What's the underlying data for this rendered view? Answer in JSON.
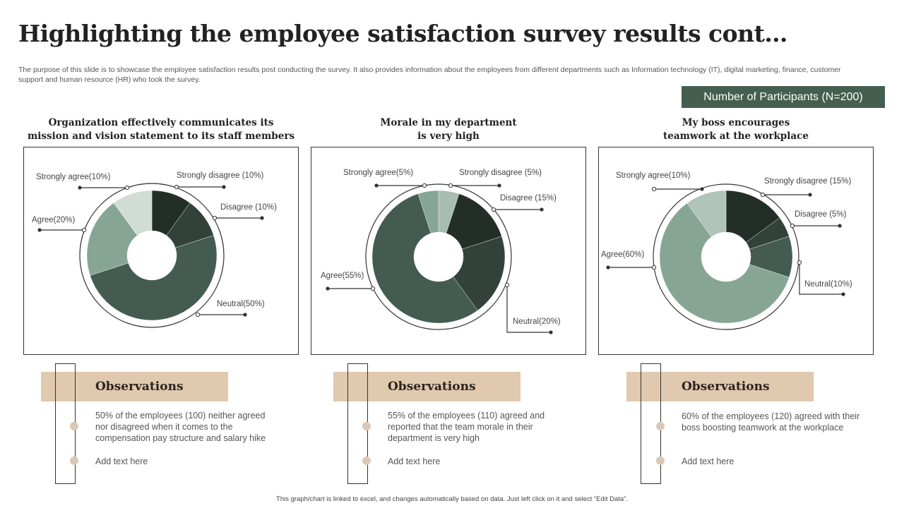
{
  "title": "Highlighting the employee satisfaction survey results cont…",
  "description": "The purpose of this slide is to showcase the employee satisfaction results post conducting the survey. It also provides information about the employees from different departments such as Information technology (IT), digital marketing, finance, customer support and human resource (HR) who took the survey.",
  "participants_label": "Number of Participants (N=200)",
  "chart_data": [
    {
      "type": "pie",
      "title": "Organization effectively communicates its mission and vision statement to its staff members",
      "categories": [
        "Strongly disagree",
        "Disagree",
        "Neutral",
        "Agree",
        "Strongly agree"
      ],
      "values": [
        10,
        10,
        50,
        20,
        10
      ],
      "labels": [
        "Strongly disagree (10%)",
        "Disagree (10%)",
        "Neutral(50%)",
        "Agree(20%)",
        "Strongly agree(10%)"
      ],
      "colors": [
        "#232e27",
        "#334239",
        "#435c4f",
        "#87a595",
        "#d2dcd6"
      ]
    },
    {
      "type": "pie",
      "title": "Morale in my department is very high",
      "categories": [
        "Strongly disagree",
        "Disagree",
        "Neutral",
        "Agree",
        "Strongly agree"
      ],
      "values": [
        5,
        15,
        20,
        55,
        5
      ],
      "labels": [
        "Strongly disagree (5%)",
        "Disagree (15%)",
        "Neutral(20%)",
        "Agree(55%)",
        "Strongly agree(5%)"
      ],
      "colors": [
        "#a8bdb1",
        "#232e27",
        "#334239",
        "#435c4f",
        "#87a595"
      ]
    },
    {
      "type": "pie",
      "title": "My boss encourages teamwork at the workplace",
      "categories": [
        "Strongly disagree",
        "Disagree",
        "Neutral",
        "Agree",
        "Strongly agree"
      ],
      "values": [
        15,
        5,
        10,
        60,
        10
      ],
      "labels": [
        "Strongly disagree (15%)",
        "Disagree (5%)",
        "Neutral(10%)",
        "Agree(60%)",
        "Strongly agree(10%)"
      ],
      "colors": [
        "#232e27",
        "#334239",
        "#435c4f",
        "#87a595",
        "#b0c4b9"
      ]
    }
  ],
  "chart_titles": [
    [
      "Organization effectively communicates its",
      "mission and vision statement to its staff members"
    ],
    [
      "Morale in my department",
      "is very high"
    ],
    [
      "My boss encourages",
      "teamwork at the workplace"
    ]
  ],
  "observations": [
    {
      "heading": "Observations",
      "text": "50% of the employees (100) neither agreed nor disagreed when it comes to the compensation pay structure and salary hike",
      "placeholder": "Add text here"
    },
    {
      "heading": "Observations",
      "text": "55% of the employees (110) agreed and reported that the team morale in their department is very high",
      "placeholder": "Add text here"
    },
    {
      "heading": "Observations",
      "text": "60% of the employees (120) agreed with their boss boosting teamwork at the workplace",
      "placeholder": "Add text here"
    }
  ],
  "footer": "This graph/chart is linked to excel, and changes automatically based on data. Just left click on it and select “Edit Data”."
}
